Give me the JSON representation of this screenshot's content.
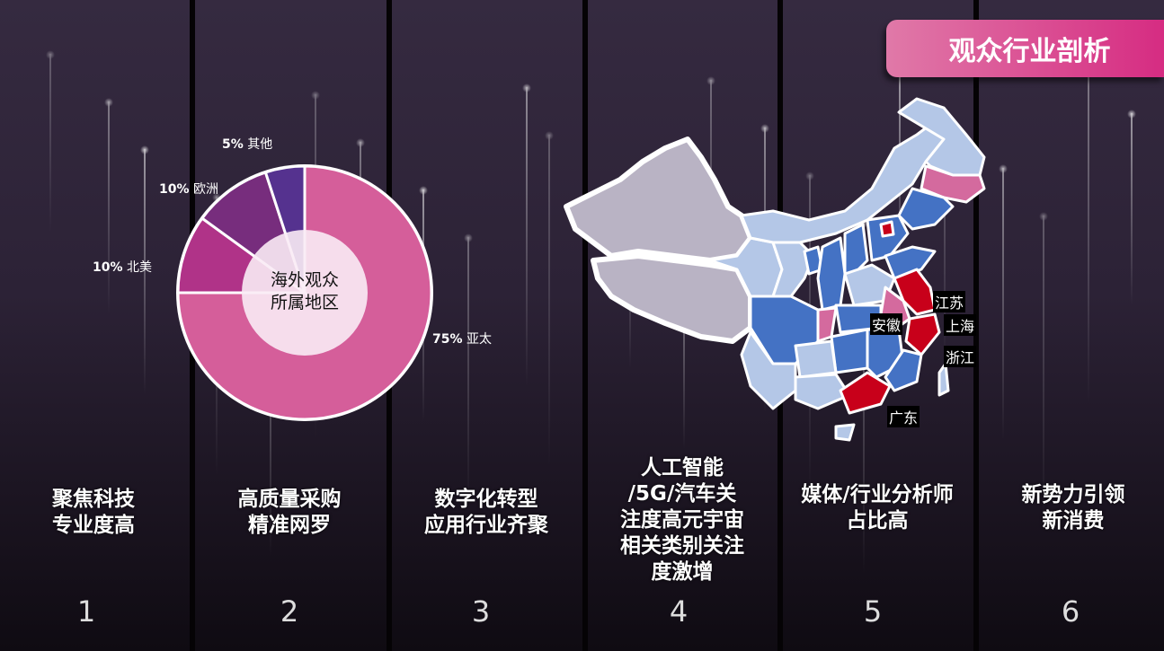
{
  "header": {
    "title": "观众行业剖析"
  },
  "columns": [
    {
      "number": "1",
      "line1": "聚焦科技",
      "line2": "专业度高"
    },
    {
      "number": "2",
      "line1": "高质量采购",
      "line2": "精准网罗"
    },
    {
      "number": "3",
      "line1": "数字化转型",
      "line2": "应用行业齐聚"
    },
    {
      "number": "4",
      "lines": [
        "人工智能",
        "/5G/汽车关",
        "注度高元宇宙",
        "相关类别关注",
        "度激增"
      ]
    },
    {
      "number": "5",
      "line1": "媒体/行业分析师",
      "line2": "占比高"
    },
    {
      "number": "6",
      "line1": "新势力引领",
      "line2": "新消费"
    }
  ],
  "chart_data": {
    "type": "pie",
    "donut": true,
    "center_label": [
      "海外观众",
      "所属地区"
    ],
    "slices": [
      {
        "name": "亚太",
        "value": 75,
        "label_pct": "75%",
        "color": "#d55e9a"
      },
      {
        "name": "北美",
        "value": 10,
        "label_pct": "10%",
        "color": "#b03388"
      },
      {
        "name": "欧洲",
        "value": 10,
        "label_pct": "10%",
        "color": "#772d7d"
      },
      {
        "name": "其他",
        "value": 5,
        "label_pct": "5%",
        "color": "#55328f"
      }
    ]
  },
  "map": {
    "labels": [
      "江苏",
      "上海",
      "安徽",
      "浙江",
      "广东"
    ],
    "colors": {
      "highlight": "#c8001a",
      "pink": "#d46a9e",
      "dark_blue": "#4472c4",
      "light_blue": "#b4c7e7",
      "grey": "#b9b3c4"
    }
  }
}
